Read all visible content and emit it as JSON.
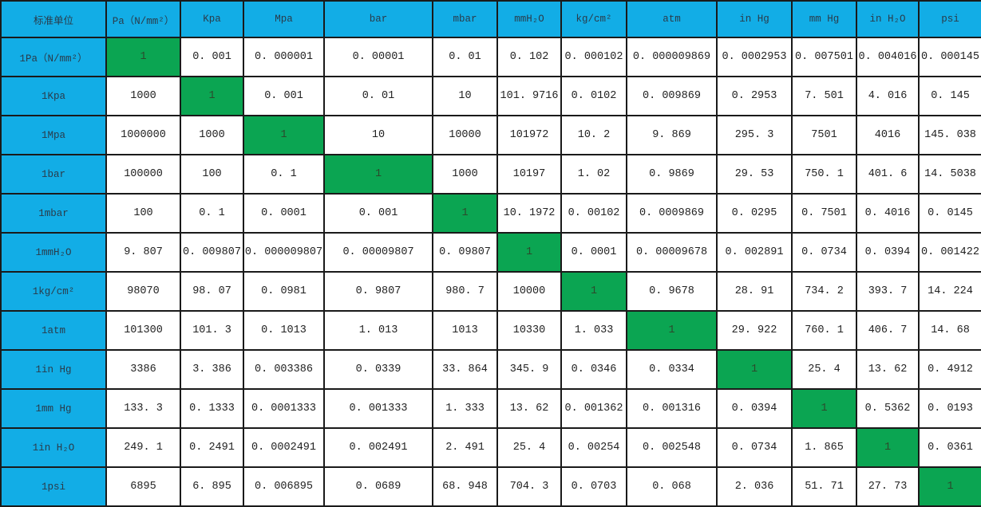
{
  "colors": {
    "header_blue": "#12ade6",
    "diagonal_green": "#0ba552"
  },
  "table": {
    "corner_label": "标准单位",
    "columns": [
      "Pa（N/mm²）",
      "Kpa",
      "Mpa",
      "bar",
      "mbar",
      "mmH₂O",
      "kg/cm²",
      "atm",
      "in Hg",
      "mm Hg",
      "in H₂O",
      "psi"
    ],
    "rows": [
      {
        "label": "1Pa（N/mm²）",
        "values": [
          "1",
          "0. 001",
          "0. 000001",
          "0. 00001",
          "0. 01",
          "0. 102",
          "0. 000102",
          "0. 000009869",
          "0. 0002953",
          "0. 007501",
          "0. 004016",
          "0. 000145"
        ]
      },
      {
        "label": "1Kpa",
        "values": [
          "1000",
          "1",
          "0. 001",
          "0. 01",
          "10",
          "101. 9716",
          "0. 0102",
          "0. 009869",
          "0. 2953",
          "7. 501",
          "4. 016",
          "0. 145"
        ]
      },
      {
        "label": "1Mpa",
        "values": [
          "1000000",
          "1000",
          "1",
          "10",
          "10000",
          "101972",
          "10. 2",
          "9. 869",
          "295. 3",
          "7501",
          "4016",
          "145. 038"
        ]
      },
      {
        "label": "1bar",
        "values": [
          "100000",
          "100",
          "0. 1",
          "1",
          "1000",
          "10197",
          "1. 02",
          "0. 9869",
          "29. 53",
          "750. 1",
          "401. 6",
          "14. 5038"
        ]
      },
      {
        "label": "1mbar",
        "values": [
          "100",
          "0. 1",
          "0. 0001",
          "0. 001",
          "1",
          "10. 1972",
          "0. 00102",
          "0. 0009869",
          "0. 0295",
          "0. 7501",
          "0. 4016",
          "0. 0145"
        ]
      },
      {
        "label": "1mmH₂O",
        "values": [
          "9. 807",
          "0. 009807",
          "0. 000009807",
          "0. 00009807",
          "0. 09807",
          "1",
          "0. 0001",
          "0. 00009678",
          "0. 002891",
          "0. 0734",
          "0. 0394",
          "0. 001422"
        ]
      },
      {
        "label": "1kg/cm²",
        "values": [
          "98070",
          "98. 07",
          "0. 0981",
          "0. 9807",
          "980. 7",
          "10000",
          "1",
          "0. 9678",
          "28. 91",
          "734. 2",
          "393. 7",
          "14. 224"
        ]
      },
      {
        "label": "1atm",
        "values": [
          "101300",
          "101. 3",
          "0. 1013",
          "1. 013",
          "1013",
          "10330",
          "1. 033",
          "1",
          "29. 922",
          "760. 1",
          "406. 7",
          "14. 68"
        ]
      },
      {
        "label": "1in Hg",
        "values": [
          "3386",
          "3. 386",
          "0. 003386",
          "0. 0339",
          "33. 864",
          "345. 9",
          "0. 0346",
          "0. 0334",
          "1",
          "25. 4",
          "13. 62",
          "0. 4912"
        ]
      },
      {
        "label": "1mm Hg",
        "values": [
          "133. 3",
          "0. 1333",
          "0. 0001333",
          "0. 001333",
          "1. 333",
          "13. 62",
          "0. 001362",
          "0. 001316",
          "0. 0394",
          "1",
          "0. 5362",
          "0. 0193"
        ]
      },
      {
        "label": "1in H₂O",
        "values": [
          "249. 1",
          "0. 2491",
          "0. 0002491",
          "0. 002491",
          "2. 491",
          "25. 4",
          "0. 00254",
          "0. 002548",
          "0. 0734",
          "1. 865",
          "1",
          "0. 0361"
        ]
      },
      {
        "label": "1psi",
        "values": [
          "6895",
          "6. 895",
          "0. 006895",
          "0. 0689",
          "68. 948",
          "704. 3",
          "0. 0703",
          "0. 068",
          "2. 036",
          "51. 71",
          "27. 73",
          "1"
        ]
      }
    ]
  }
}
